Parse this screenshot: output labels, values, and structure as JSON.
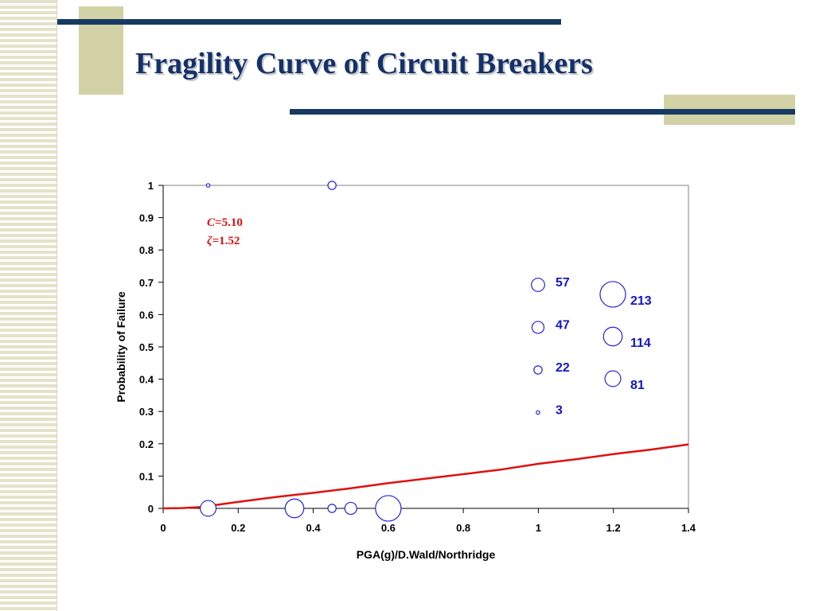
{
  "slide": {
    "title": "Fragility Curve of Circuit Breakers"
  },
  "theme": {
    "title_color": "#14316b",
    "accent_line": "#173a63",
    "accent_block": "#d3d2a6",
    "stripe_color": "#e4e2c9"
  },
  "chart_data": {
    "type": "scatter",
    "title": "",
    "xlabel": "PGA(g)/D.Wald/Northridge",
    "ylabel": "Probability of Failure",
    "xlim": [
      0,
      1.4
    ],
    "ylim": [
      0,
      1
    ],
    "xticks": [
      0,
      0.2,
      0.4,
      0.6,
      0.8,
      1,
      1.2,
      1.4
    ],
    "xtick_labels": [
      "0",
      "0.2",
      "0.4",
      "0.6",
      "0.8",
      "1",
      "1.2",
      "1.4"
    ],
    "yticks": [
      0,
      0.1,
      0.2,
      0.3,
      0.4,
      0.5,
      0.6,
      0.7,
      0.8,
      0.9,
      1
    ],
    "ytick_labels": [
      "0",
      "0.1",
      "0.2",
      "0.3",
      "0.4",
      "0.5",
      "0.6",
      "0.7",
      "0.8",
      "0.9",
      "1"
    ],
    "grid": false,
    "marker_color": "#2323e0",
    "curve_color": "#e01010",
    "points": [
      {
        "x": 0.12,
        "y": 1,
        "size": 3
      },
      {
        "x": 0.45,
        "y": 1,
        "size": 22
      },
      {
        "x": 0.12,
        "y": 0,
        "size": 81
      },
      {
        "x": 0.35,
        "y": 0,
        "size": 114
      },
      {
        "x": 0.45,
        "y": 0,
        "size": 22
      },
      {
        "x": 0.5,
        "y": 0,
        "size": 47
      },
      {
        "x": 0.6,
        "y": 0,
        "size": 213
      }
    ],
    "legend": [
      {
        "label": "57",
        "size": 57
      },
      {
        "label": "47",
        "size": 47
      },
      {
        "label": "22",
        "size": 22
      },
      {
        "label": "3",
        "size": 3
      },
      {
        "label": "213",
        "size": 213
      },
      {
        "label": "114",
        "size": 114
      },
      {
        "label": "81",
        "size": 81
      }
    ],
    "curve": {
      "name": "fragility-curve",
      "x": [
        0,
        0.05,
        0.1,
        0.15,
        0.2,
        0.3,
        0.4,
        0.5,
        0.6,
        0.7,
        0.8,
        0.9,
        1.0,
        1.1,
        1.2,
        1.3,
        1.4
      ],
      "y": [
        0,
        0.001,
        0.004,
        0.012,
        0.02,
        0.035,
        0.048,
        0.062,
        0.078,
        0.092,
        0.106,
        0.12,
        0.138,
        0.152,
        0.168,
        0.182,
        0.198
      ]
    },
    "annotations": {
      "c_symbol": "C",
      "c_value": "=5.10",
      "zeta_symbol": "ζ",
      "zeta_value": "=1.52"
    }
  }
}
